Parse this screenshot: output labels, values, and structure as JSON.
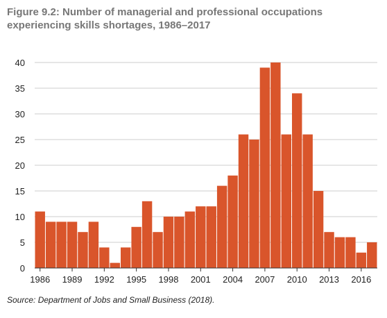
{
  "figure": {
    "title_line1": "Figure 9.2: Number of managerial and professional occupations",
    "title_line2": "experiencing skills shortages, 1986–2017",
    "source": "Source: Department of Jobs and Small Business (2018)."
  },
  "chart_data": {
    "type": "bar",
    "title": "Figure 9.2: Number of managerial and professional occupations experiencing skills shortages, 1986–2017",
    "xlabel": "",
    "ylabel": "",
    "categories": [
      1986,
      1987,
      1988,
      1989,
      1990,
      1991,
      1992,
      1993,
      1994,
      1995,
      1996,
      1997,
      1998,
      1999,
      2000,
      2001,
      2002,
      2003,
      2004,
      2005,
      2006,
      2007,
      2008,
      2009,
      2010,
      2011,
      2012,
      2013,
      2014,
      2015,
      2016,
      2017
    ],
    "values": [
      11,
      9,
      9,
      9,
      7,
      9,
      4,
      1,
      4,
      8,
      13,
      7,
      10,
      10,
      11,
      12,
      12,
      16,
      18,
      26,
      25,
      39,
      40,
      26,
      34,
      26,
      15,
      7,
      6,
      6,
      3,
      5
    ],
    "ylim": [
      0,
      40
    ],
    "yticks": [
      0,
      5,
      10,
      15,
      20,
      25,
      30,
      35,
      40
    ],
    "xtick_labels": [
      "1986",
      "1989",
      "1992",
      "1995",
      "1998",
      "2001",
      "2004",
      "2007",
      "2010",
      "2013",
      "2016"
    ],
    "grid": true,
    "bar_color": "#d9552b",
    "grid_color": "#cccccc",
    "axis_color": "#333333"
  }
}
